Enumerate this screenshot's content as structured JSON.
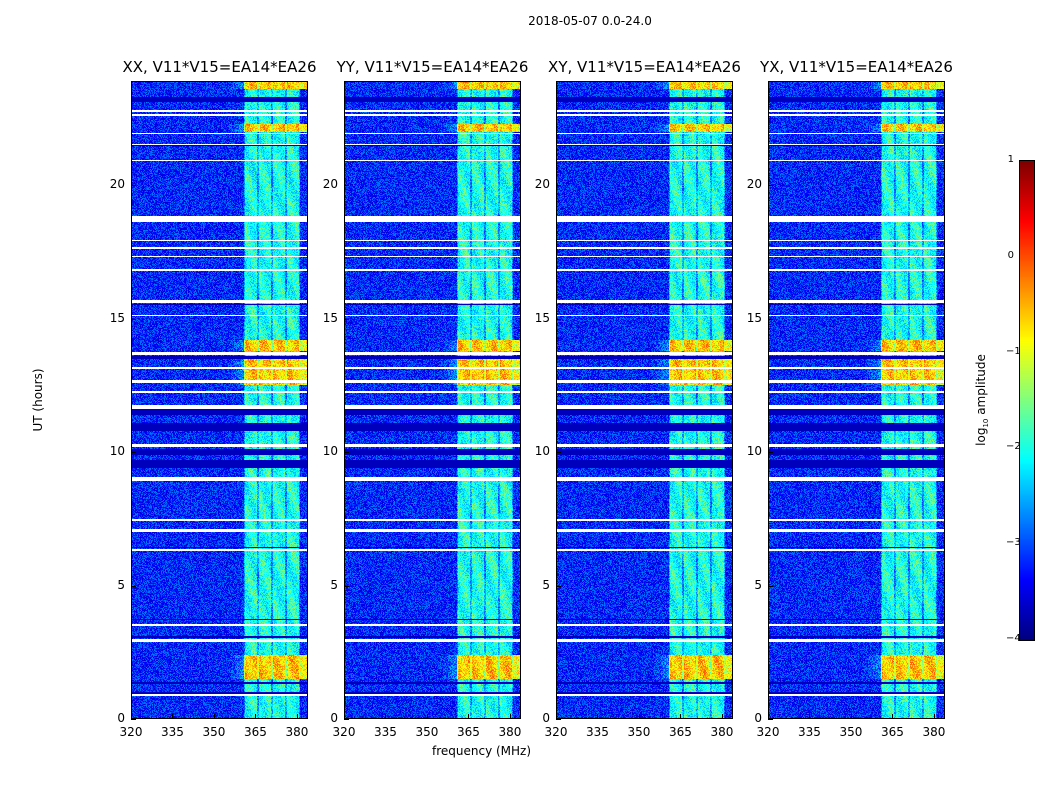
{
  "chart_data": {
    "type": "heatmap",
    "suptitle": "2018-05-07 0.0-24.0",
    "panels": [
      {
        "title": "XX, V11*V15=EA14*EA26"
      },
      {
        "title": "YY, V11*V15=EA14*EA26"
      },
      {
        "title": "XY, V11*V15=EA14*EA26"
      },
      {
        "title": "YX, V11*V15=EA14*EA26"
      }
    ],
    "xlabel": "frequency (MHz)",
    "ylabel": "UT (hours)",
    "xlim": [
      320,
      384
    ],
    "ylim": [
      0,
      23.9
    ],
    "xticks": [
      320,
      335,
      350,
      365,
      380
    ],
    "yticks": [
      0,
      5,
      10,
      15,
      20
    ],
    "colormap": "jet",
    "colorbar": {
      "label": "log10 amplitude",
      "label_base": "log",
      "label_sub": "10",
      "label_rest": " amplitude",
      "range": [
        -4,
        1
      ],
      "ticks": [
        "1",
        "0",
        "−1",
        "−2",
        "−3",
        "−4"
      ]
    },
    "background_log_amplitude": -3.2,
    "bright_subbands_mhz": [
      [
        361,
        366
      ],
      [
        366,
        371
      ],
      [
        371,
        376
      ],
      [
        376,
        381
      ]
    ],
    "subband_log_amplitude": -2.0,
    "strong_rfi_ut_ranges": [
      [
        1.5,
        2.4
      ],
      [
        12.5,
        13.5
      ],
      [
        13.8,
        14.2
      ],
      [
        22,
        22.3
      ],
      [
        23.6,
        23.9
      ]
    ],
    "flagged_ut_ranges": [
      [
        0.85,
        0.95
      ],
      [
        2.9,
        3.0
      ],
      [
        3.5,
        3.55
      ],
      [
        6.3,
        6.35
      ],
      [
        7.0,
        7.1
      ],
      [
        7.4,
        7.5
      ],
      [
        8.9,
        9.05
      ],
      [
        10.2,
        10.3
      ],
      [
        11.6,
        11.75
      ],
      [
        12.2,
        12.3
      ],
      [
        12.6,
        12.7
      ],
      [
        13.1,
        13.2
      ],
      [
        13.65,
        13.75
      ],
      [
        15.1,
        15.15
      ],
      [
        15.6,
        15.7
      ],
      [
        16.8,
        16.85
      ],
      [
        17.3,
        17.35
      ],
      [
        17.6,
        17.7
      ],
      [
        17.9,
        17.95
      ],
      [
        18.6,
        18.85
      ],
      [
        20.9,
        20.95
      ],
      [
        21.5,
        21.55
      ],
      [
        21.9,
        21.95
      ],
      [
        22.6,
        22.65
      ],
      [
        22.75,
        22.8
      ]
    ],
    "dark_ut_ranges": [
      [
        0.9,
        1.0
      ],
      [
        1.3,
        1.4
      ],
      [
        3.05,
        3.1
      ],
      [
        3.7,
        3.75
      ],
      [
        6.4,
        6.45
      ],
      [
        9.4,
        9.7
      ],
      [
        9.9,
        10.1
      ],
      [
        10.8,
        11.1
      ],
      [
        11.4,
        11.6
      ],
      [
        13.5,
        13.6
      ],
      [
        15.5,
        15.55
      ],
      [
        21.45,
        21.5
      ],
      [
        23.1,
        23.3
      ]
    ]
  }
}
